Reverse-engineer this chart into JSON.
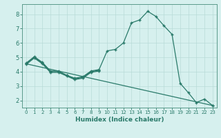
{
  "xlabel": "Humidex (Indice chaleur)",
  "background_color": "#d6f0ee",
  "grid_color": "#b8dbd8",
  "line_color": "#2a7a6a",
  "spine_color": "#5a9a8a",
  "xlim": [
    -0.5,
    23.5
  ],
  "ylim": [
    1.5,
    8.7
  ],
  "yticks": [
    2,
    3,
    4,
    5,
    6,
    7,
    8
  ],
  "xticks": [
    0,
    1,
    2,
    3,
    4,
    5,
    6,
    7,
    8,
    9,
    10,
    11,
    12,
    13,
    14,
    15,
    16,
    17,
    18,
    19,
    20,
    21,
    22,
    23
  ],
  "series_main": {
    "x": [
      0,
      1,
      2,
      3,
      4,
      5,
      6,
      7,
      8,
      9,
      10,
      11,
      12,
      13,
      14,
      15,
      16,
      17,
      18,
      19,
      20,
      21,
      22,
      23
    ],
    "y": [
      4.6,
      5.05,
      4.65,
      4.05,
      4.05,
      3.75,
      3.55,
      3.65,
      4.05,
      4.15,
      5.45,
      5.55,
      6.0,
      7.4,
      7.6,
      8.2,
      7.85,
      7.2,
      6.6,
      3.2,
      2.55,
      1.85,
      2.1,
      1.65
    ]
  },
  "series_short1": {
    "x": [
      0,
      1,
      2,
      3,
      4,
      5,
      6,
      7,
      8,
      9
    ],
    "y": [
      4.55,
      5.0,
      4.6,
      4.0,
      4.0,
      3.75,
      3.5,
      3.6,
      4.0,
      4.1
    ]
  },
  "series_short2": {
    "x": [
      0,
      1,
      2,
      3,
      4,
      5,
      6,
      7,
      8,
      9
    ],
    "y": [
      4.5,
      4.95,
      4.55,
      3.95,
      3.95,
      3.7,
      3.45,
      3.55,
      3.95,
      4.05
    ]
  },
  "series_diagonal": {
    "x": [
      0,
      23
    ],
    "y": [
      4.55,
      1.65
    ]
  }
}
